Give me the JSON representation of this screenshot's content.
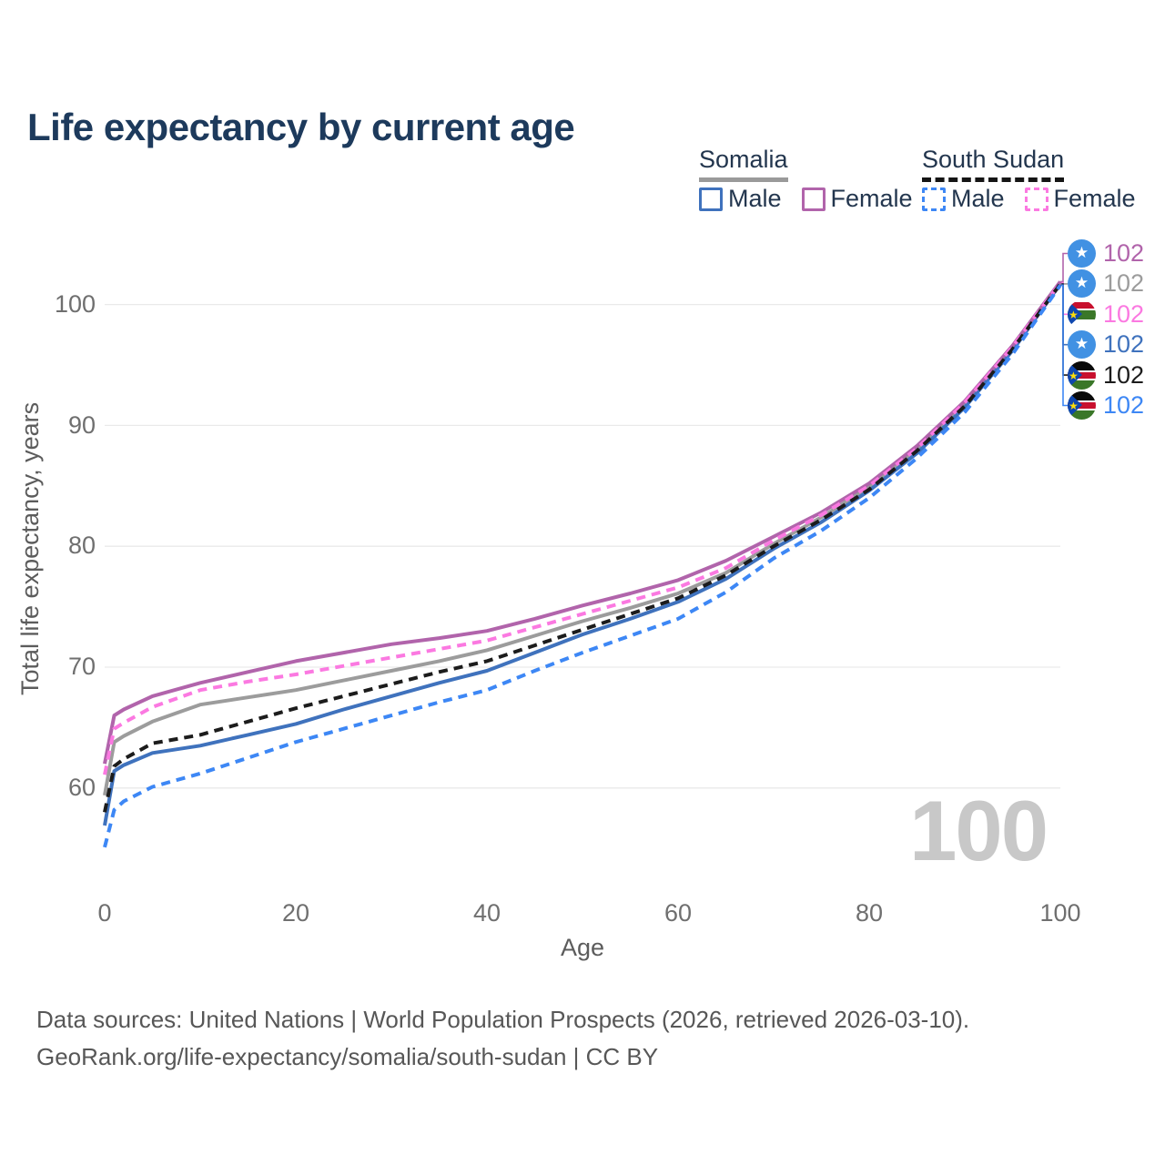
{
  "title": "Life expectancy by current age",
  "icons": {
    "star": "★",
    "somalia_flag": "somalia-flag-icon",
    "south_sudan_flag": "south-sudan-flag-icon"
  },
  "legend": {
    "somalia": {
      "title": "Somalia",
      "male": "Male",
      "female": "Female"
    },
    "south_sudan": {
      "title": "South Sudan",
      "male": "Male",
      "female": "Female"
    }
  },
  "watermark_value": "100",
  "footer": {
    "line1": "Data sources: United Nations | World Population Prospects (2026, retrieved 2026-03-10).",
    "line2": "GeoRank.org/life-expectancy/somalia/south-sudan | CC BY"
  },
  "right_labels": [
    {
      "flag": "somalia",
      "value": "102",
      "color": "#b164ab"
    },
    {
      "flag": "somalia",
      "value": "102",
      "color": "#9c9c9c"
    },
    {
      "flag": "south-sudan",
      "value": "102",
      "color": "#fb79e1"
    },
    {
      "flag": "somalia",
      "value": "102",
      "color": "#3f72bd"
    },
    {
      "flag": "south-sudan",
      "value": "102",
      "color": "#1c1c1c"
    },
    {
      "flag": "south-sudan",
      "value": "102",
      "color": "#3d87f5"
    }
  ],
  "chart_data": {
    "type": "line",
    "title": "Life expectancy by current age",
    "xlabel": "Age",
    "ylabel": "Total life expectancy, years",
    "xlim": [
      0,
      100
    ],
    "ylim": [
      54,
      104
    ],
    "grid": "horizontal",
    "x_ticks": [
      "0",
      "20",
      "40",
      "60",
      "80",
      "100"
    ],
    "x_tick_values": [
      0,
      20,
      40,
      60,
      80,
      100
    ],
    "y_ticks": [
      "100",
      "90",
      "80",
      "70",
      "60"
    ],
    "y_tick_values": [
      100,
      90,
      80,
      70,
      60
    ],
    "ages": [
      0,
      1,
      2,
      5,
      10,
      15,
      20,
      25,
      30,
      35,
      40,
      45,
      50,
      55,
      60,
      65,
      70,
      75,
      80,
      85,
      90,
      95,
      100
    ],
    "series": [
      {
        "name": "Somalia Female",
        "slug": "somalia-female",
        "country": "Somalia",
        "sex": "Female",
        "style": "solid",
        "color": "#b164ab",
        "end_label": "102",
        "values": [
          62.0,
          66.0,
          66.5,
          67.6,
          68.7,
          69.6,
          70.5,
          71.2,
          71.9,
          72.4,
          73.0,
          74.0,
          75.1,
          76.1,
          77.2,
          78.8,
          80.8,
          82.8,
          85.2,
          88.3,
          92.0,
          96.6,
          101.9
        ]
      },
      {
        "name": "Somalia Both sexes",
        "slug": "somalia-both",
        "country": "Somalia",
        "sex": "Both",
        "style": "solid",
        "color": "#9c9c9c",
        "end_label": "102",
        "values": [
          59.4,
          63.8,
          64.3,
          65.5,
          66.9,
          67.5,
          68.1,
          68.9,
          69.7,
          70.5,
          71.4,
          72.6,
          73.8,
          74.9,
          76.1,
          77.8,
          80.2,
          82.4,
          84.9,
          88.0,
          91.8,
          96.4,
          101.8
        ]
      },
      {
        "name": "South Sudan Female",
        "slug": "south-sudan-female",
        "country": "South Sudan",
        "sex": "Female",
        "style": "dashed",
        "color": "#fb79e1",
        "end_label": "102",
        "values": [
          61.1,
          64.9,
          65.4,
          66.7,
          68.1,
          68.8,
          69.4,
          70.1,
          70.8,
          71.5,
          72.2,
          73.3,
          74.4,
          75.5,
          76.6,
          78.2,
          80.5,
          82.6,
          85.0,
          88.1,
          91.9,
          96.5,
          101.8
        ]
      },
      {
        "name": "Somalia Male",
        "slug": "somalia-male",
        "country": "Somalia",
        "sex": "Male",
        "style": "solid",
        "color": "#3f72bd",
        "end_label": "102",
        "values": [
          56.9,
          61.4,
          61.9,
          62.9,
          63.5,
          64.4,
          65.3,
          66.5,
          67.6,
          68.7,
          69.7,
          71.2,
          72.7,
          74.0,
          75.4,
          77.3,
          79.8,
          82.0,
          84.6,
          87.7,
          91.5,
          96.2,
          101.7
        ]
      },
      {
        "name": "South Sudan Both sexes",
        "slug": "south-sudan-both",
        "country": "South Sudan",
        "sex": "Both",
        "style": "dashed",
        "color": "#1c1c1c",
        "end_label": "102",
        "values": [
          58.0,
          61.8,
          62.4,
          63.7,
          64.4,
          65.5,
          66.6,
          67.6,
          68.6,
          69.6,
          70.5,
          71.8,
          73.1,
          74.4,
          75.7,
          77.6,
          80.0,
          82.2,
          84.7,
          87.9,
          91.6,
          96.3,
          101.7
        ]
      },
      {
        "name": "South Sudan Male",
        "slug": "south-sudan-male",
        "country": "South Sudan",
        "sex": "Male",
        "style": "dashed",
        "color": "#3d87f5",
        "end_label": "102",
        "values": [
          55.1,
          58.2,
          58.9,
          60.1,
          61.2,
          62.5,
          63.8,
          64.9,
          66.0,
          67.1,
          68.1,
          69.7,
          71.2,
          72.6,
          74.0,
          76.2,
          79.0,
          81.3,
          84.0,
          87.3,
          91.1,
          95.9,
          101.6
        ]
      }
    ],
    "legend_position": "top-right"
  }
}
